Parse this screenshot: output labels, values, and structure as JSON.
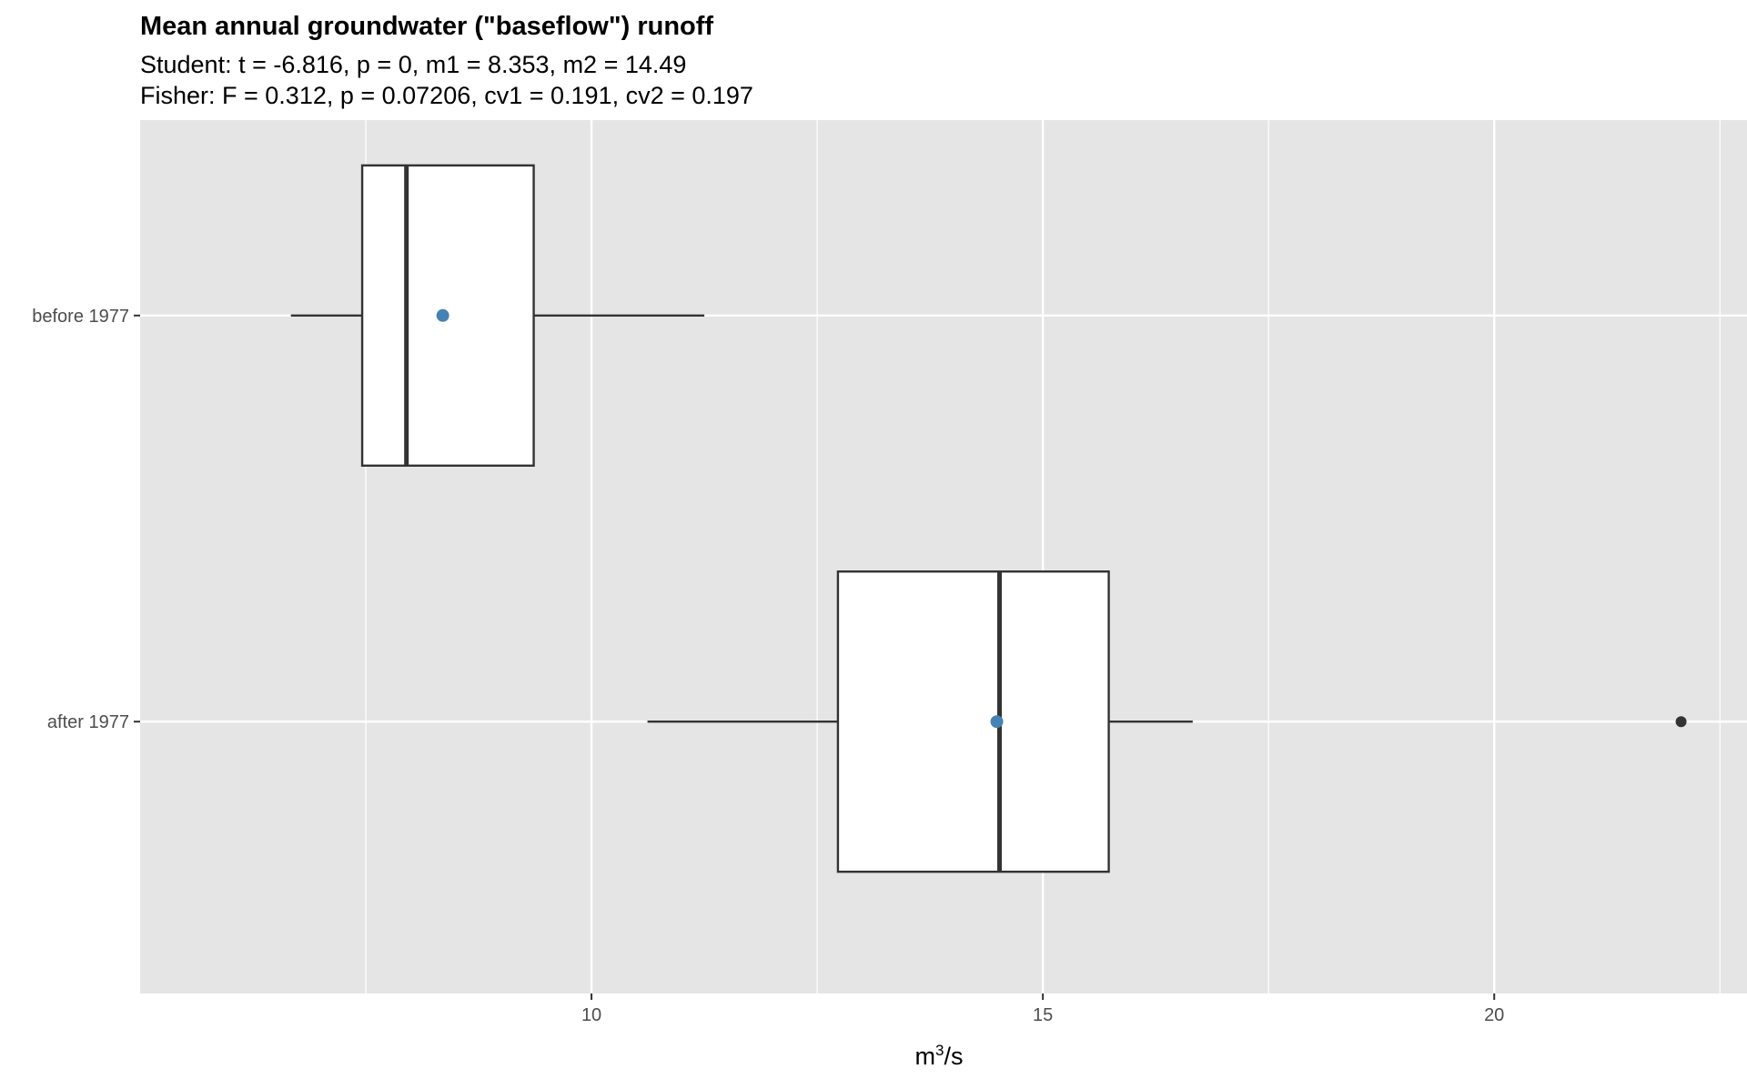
{
  "chart_data": {
    "type": "boxplot",
    "orientation": "horizontal",
    "title": "Mean annual groundwater (\"baseflow\") runoff",
    "subtitle_lines": [
      "Student: t = -6.816, p = 0, m1 = 8.353, m2 = 14.49",
      "Fisher: F = 0.312, p = 0.07206, cv1 = 0.191, cv2 = 0.197"
    ],
    "xlabel_base": "m",
    "xlabel_sup": "3",
    "xlabel_rest": "/s",
    "xlim": [
      5.0,
      22.8
    ],
    "x_major_ticks": [
      10,
      15,
      20
    ],
    "x_minor_ticks": [
      7.5,
      12.5,
      17.5,
      22.5
    ],
    "categories": [
      "before 1977",
      "after 1977"
    ],
    "boxes": [
      {
        "label": "before 1977",
        "whisker_low": 6.67,
        "q1": 7.46,
        "median": 7.95,
        "q3": 9.36,
        "whisker_high": 11.25,
        "mean": 8.353,
        "outliers": []
      },
      {
        "label": "after 1977",
        "whisker_low": 10.62,
        "q1": 12.73,
        "median": 14.52,
        "q3": 15.73,
        "whisker_high": 16.66,
        "mean": 14.49,
        "outliers": [
          22.07
        ]
      }
    ],
    "grid": true,
    "colors": {
      "panel": "#e5e5e5",
      "grid": "#ffffff",
      "box_fill": "#ffffff",
      "box_line": "#333333",
      "mean_point": "#4682b4",
      "outlier": "#333333"
    }
  }
}
